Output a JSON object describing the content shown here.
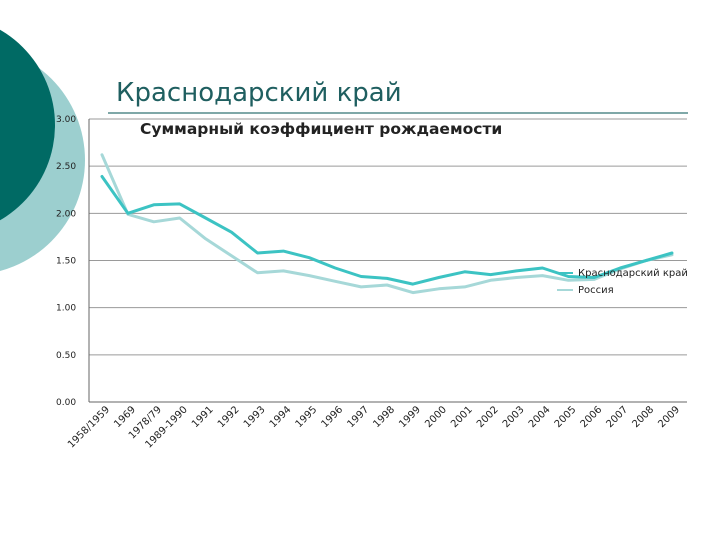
{
  "slide": {
    "title": "Краснодарский край",
    "colors": {
      "dark_circle": "#006a64",
      "light_circle": "#9ccfcf",
      "title_color": "#1f5f60"
    }
  },
  "chart_data": {
    "type": "line",
    "title": "Суммарный коэффициент рождаемости",
    "categories": [
      "1958/1959",
      "1969",
      "1978/79",
      "1989-1990",
      "1991",
      "1992",
      "1993",
      "1994",
      "1995",
      "1996",
      "1997",
      "1998",
      "1999",
      "2000",
      "2001",
      "2002",
      "2003",
      "2004",
      "2005",
      "2006",
      "2007",
      "2008",
      "2009"
    ],
    "yticks": [
      "0.00",
      "0.50",
      "1.00",
      "1.50",
      "2.00",
      "2.50",
      "3.00"
    ],
    "ylim": [
      0,
      3
    ],
    "grid": true,
    "legend_position": "right",
    "series": [
      {
        "name": "Краснодарский край",
        "color": "#3cc3c3",
        "values": [
          2.39,
          2.0,
          2.09,
          2.1,
          1.95,
          1.8,
          1.58,
          1.6,
          1.53,
          1.42,
          1.33,
          1.31,
          1.25,
          1.32,
          1.38,
          1.35,
          1.39,
          1.42,
          1.33,
          1.32,
          1.42,
          1.5,
          1.58
        ]
      },
      {
        "name": "Россия",
        "color": "#a6d8d8",
        "values": [
          2.62,
          1.99,
          1.91,
          1.95,
          1.73,
          1.55,
          1.37,
          1.39,
          1.34,
          1.28,
          1.22,
          1.24,
          1.16,
          1.2,
          1.22,
          1.29,
          1.32,
          1.34,
          1.29,
          1.3,
          1.41,
          1.5,
          1.56
        ]
      }
    ]
  }
}
